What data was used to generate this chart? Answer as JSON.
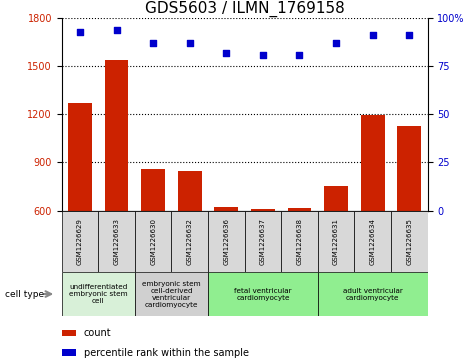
{
  "title": "GDS5603 / ILMN_1769158",
  "samples": [
    "GSM1226629",
    "GSM1226633",
    "GSM1226630",
    "GSM1226632",
    "GSM1226636",
    "GSM1226637",
    "GSM1226638",
    "GSM1226631",
    "GSM1226634",
    "GSM1226635"
  ],
  "counts": [
    1270,
    1540,
    860,
    845,
    620,
    608,
    618,
    755,
    1195,
    1130
  ],
  "percentiles": [
    93,
    94,
    87,
    87,
    82,
    81,
    81,
    87,
    91,
    91
  ],
  "ylim_left": [
    600,
    1800
  ],
  "ylim_right": [
    0,
    100
  ],
  "yticks_left": [
    600,
    900,
    1200,
    1500,
    1800
  ],
  "yticks_right": [
    0,
    25,
    50,
    75,
    100
  ],
  "cell_types": [
    {
      "label": "undifferentiated\nembryonic stem\ncell",
      "start": 0,
      "end": 2,
      "color": "#d8f0d8"
    },
    {
      "label": "embryonic stem\ncell-derived\nventricular\ncardiomyocyte",
      "start": 2,
      "end": 4,
      "color": "#d0d0d0"
    },
    {
      "label": "fetal ventricular\ncardiomyocyte",
      "start": 4,
      "end": 7,
      "color": "#90ee90"
    },
    {
      "label": "adult ventricular\ncardiomyocyte",
      "start": 7,
      "end": 10,
      "color": "#90ee90"
    }
  ],
  "bar_color": "#cc2200",
  "dot_color": "#0000cc",
  "title_fontsize": 11,
  "tick_fontsize": 7,
  "label_fontsize": 6
}
